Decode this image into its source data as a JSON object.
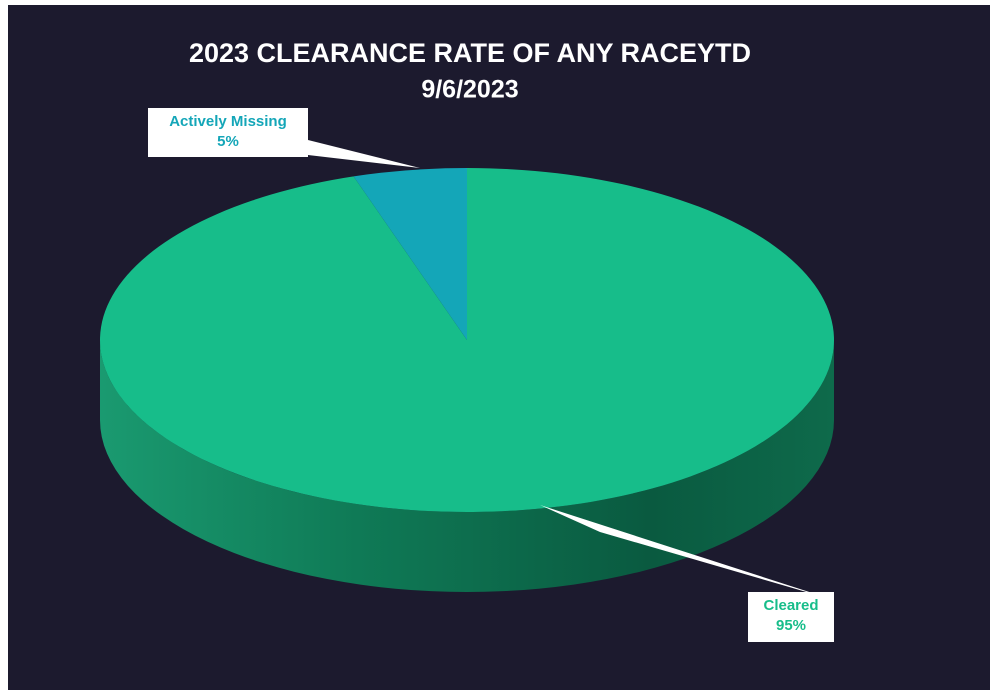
{
  "chart_data": {
    "type": "pie3d",
    "title": "2023 CLEARANCE RATE OF ANY RACEYTD",
    "subtitle": "9/6/2023",
    "categories": [
      "Cleared",
      "Actively Missing"
    ],
    "values": [
      95,
      5
    ],
    "value_labels": [
      "95%",
      "5%"
    ],
    "colors": [
      "#17bd8a",
      "#14a6b8"
    ]
  }
}
